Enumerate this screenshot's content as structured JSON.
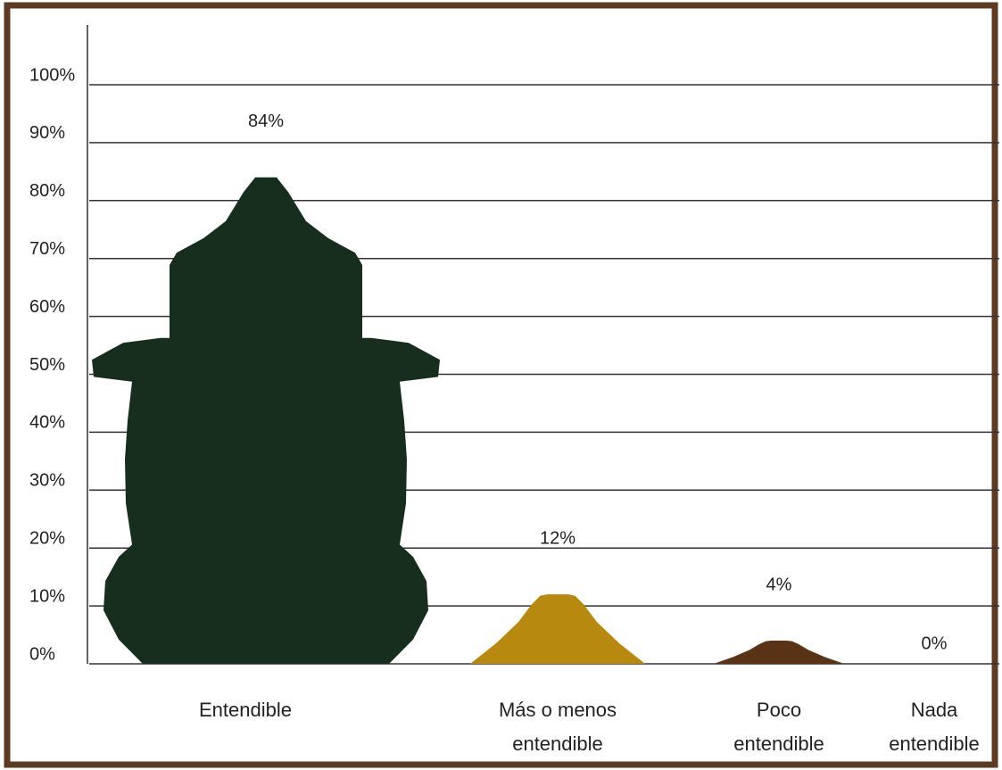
{
  "chart_data": {
    "type": "bar",
    "categories": [
      "Entendible",
      "Más o menos entendible",
      "Poco entendible",
      "Nada entendible"
    ],
    "values": [
      84,
      12,
      4,
      0
    ],
    "value_labels": [
      "84%",
      "12%",
      "4%",
      "0%"
    ],
    "colors": [
      "#172e1e",
      "#b8890f",
      "#5a3316",
      "#5a3316"
    ],
    "ylim": [
      0,
      100
    ],
    "yticks": [
      {
        "value": 0,
        "label": "0%"
      },
      {
        "value": 10,
        "label": "10%"
      },
      {
        "value": 20,
        "label": "20%"
      },
      {
        "value": 30,
        "label": "30%"
      },
      {
        "value": 40,
        "label": "40%"
      },
      {
        "value": 50,
        "label": "50%"
      },
      {
        "value": 60,
        "label": "60%"
      },
      {
        "value": 70,
        "label": "70%"
      },
      {
        "value": 80,
        "label": "80%"
      },
      {
        "value": 90,
        "label": "90%"
      },
      {
        "value": 100,
        "label": "100%"
      }
    ],
    "grid": true
  }
}
